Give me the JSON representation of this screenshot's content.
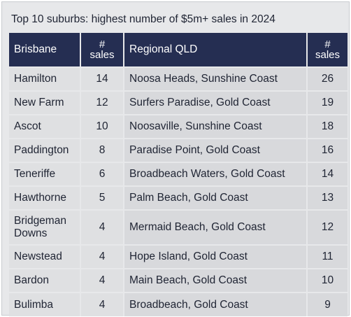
{
  "title": "Top 10 suburbs: highest number of $5m+ sales in 2024",
  "headers": {
    "brisbane": "Brisbane",
    "brisbane_sales": "#\nsales",
    "regional": "Regional QLD",
    "regional_sales": "#\nsales"
  },
  "rows": [
    {
      "brisbane": "Hamilton",
      "brisbane_sales": "14",
      "regional": "Noosa Heads, Sunshine Coast",
      "regional_sales": "26"
    },
    {
      "brisbane": "New Farm",
      "brisbane_sales": "12",
      "regional": "Surfers Paradise, Gold Coast",
      "regional_sales": "19"
    },
    {
      "brisbane": "Ascot",
      "brisbane_sales": "10",
      "regional": "Noosaville, Sunshine Coast",
      "regional_sales": "18"
    },
    {
      "brisbane": "Paddington",
      "brisbane_sales": "8",
      "regional": "Paradise Point, Gold Coast",
      "regional_sales": "16"
    },
    {
      "brisbane": "Teneriffe",
      "brisbane_sales": "6",
      "regional": "Broadbeach Waters, Gold Coast",
      "regional_sales": "14"
    },
    {
      "brisbane": "Hawthorne",
      "brisbane_sales": "5",
      "regional": "Palm Beach, Gold Coast",
      "regional_sales": "13"
    },
    {
      "brisbane": "Bridgeman Downs",
      "brisbane_sales": "4",
      "regional": "Mermaid Beach, Gold Coast",
      "regional_sales": "12"
    },
    {
      "brisbane": "Newstead",
      "brisbane_sales": "4",
      "regional": "Hope Island, Gold Coast",
      "regional_sales": "11"
    },
    {
      "brisbane": "Bardon",
      "brisbane_sales": "4",
      "regional": "Main Beach, Gold Coast",
      "regional_sales": "10"
    },
    {
      "brisbane": "Bulimba",
      "brisbane_sales": "4",
      "regional": "Broadbeach, Gold Coast",
      "regional_sales": "9"
    }
  ]
}
